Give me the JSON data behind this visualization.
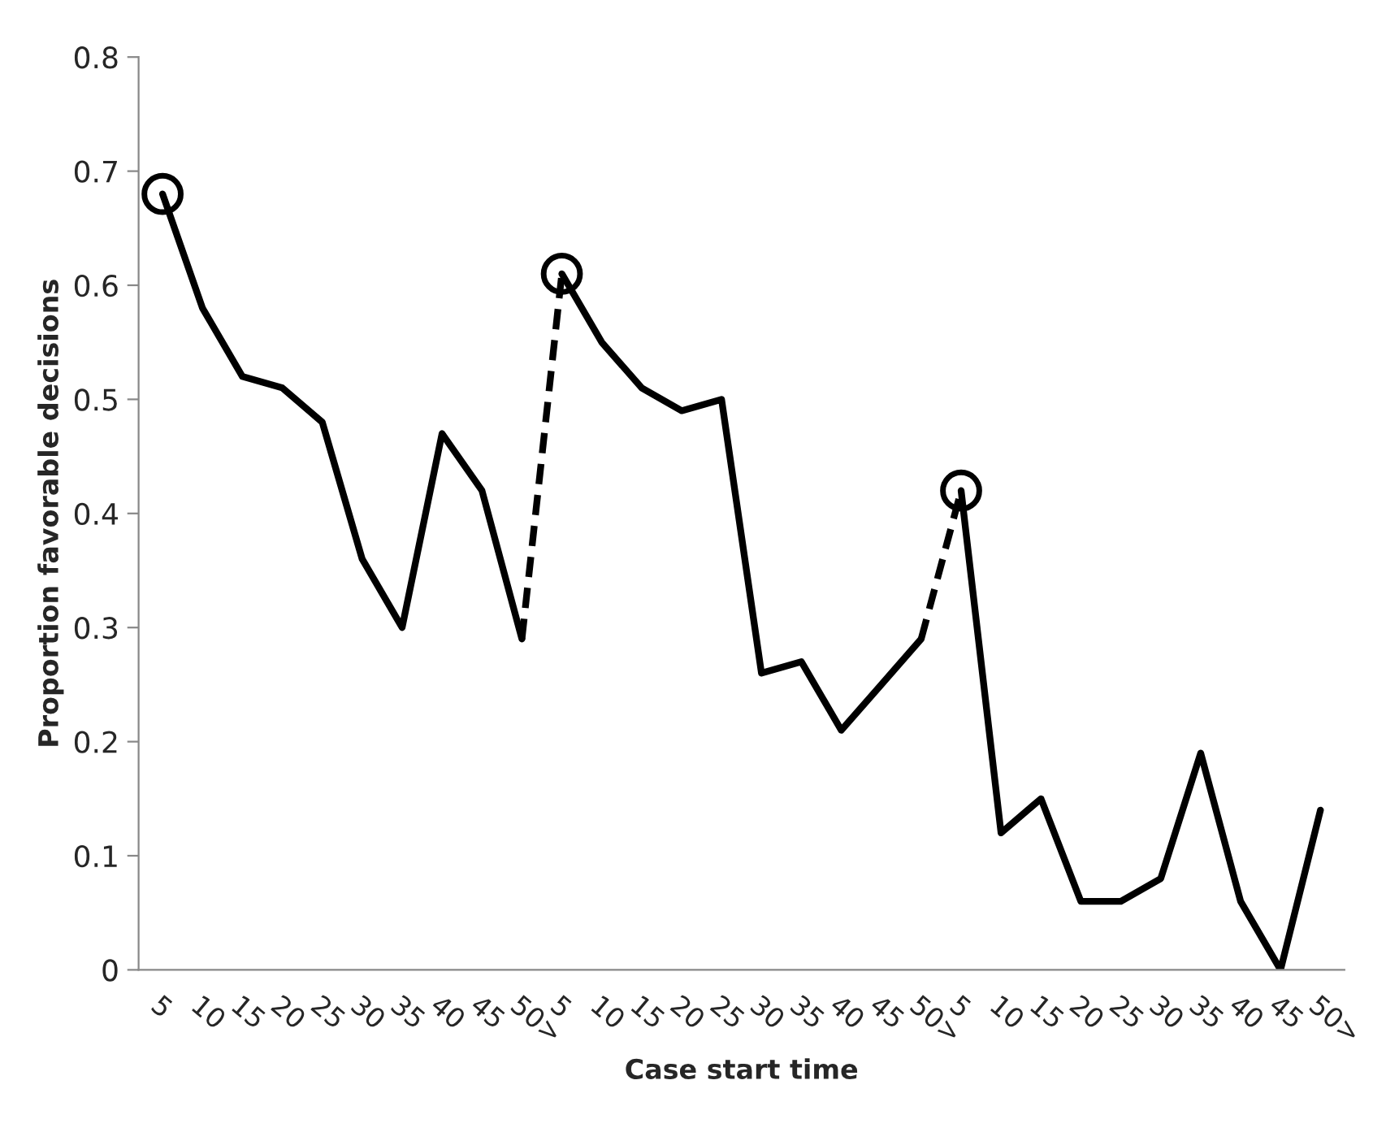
{
  "chart_data": {
    "type": "line",
    "xlabel": "Case start time",
    "ylabel": "Proportion favorable decisions",
    "categories": [
      "5",
      "10",
      "15",
      "20",
      "25",
      "30",
      "35",
      "40",
      "45",
      "50>",
      "5",
      "10",
      "15",
      "20",
      "25",
      "30",
      "35",
      "40",
      "45",
      "50>",
      "5",
      "10",
      "15",
      "20",
      "25",
      "30",
      "35",
      "40",
      "45",
      "50>"
    ],
    "ylim": [
      0,
      0.8
    ],
    "yticks": [
      0,
      0.1,
      0.2,
      0.3,
      0.4,
      0.5,
      0.6,
      0.7,
      0.8
    ],
    "grid": false,
    "legend": false,
    "series": [
      {
        "line_style": "solid",
        "color": "#000000",
        "values": [
          0.68,
          0.58,
          0.52,
          0.51,
          0.48,
          0.36,
          0.3,
          0.47,
          0.42,
          0.29,
          null,
          null,
          null,
          null,
          null,
          null,
          null,
          null,
          null,
          null,
          null,
          null,
          null,
          null,
          null,
          null,
          null,
          null,
          null,
          null
        ]
      },
      {
        "line_style": "solid",
        "color": "#000000",
        "values": [
          null,
          null,
          null,
          null,
          null,
          null,
          null,
          null,
          null,
          null,
          0.61,
          0.55,
          0.51,
          0.49,
          0.5,
          0.26,
          0.27,
          0.21,
          0.25,
          0.29,
          null,
          null,
          null,
          null,
          null,
          null,
          null,
          null,
          null,
          null
        ]
      },
      {
        "line_style": "solid",
        "color": "#000000",
        "values": [
          null,
          null,
          null,
          null,
          null,
          null,
          null,
          null,
          null,
          null,
          null,
          null,
          null,
          null,
          null,
          null,
          null,
          null,
          null,
          null,
          0.42,
          0.12,
          0.15,
          0.06,
          0.06,
          0.08,
          0.19,
          0.06,
          0.0,
          0.14
        ]
      },
      {
        "line_style": "dashed",
        "color": "#000000",
        "values": [
          null,
          null,
          null,
          null,
          null,
          null,
          null,
          null,
          null,
          0.29,
          0.61,
          null,
          null,
          null,
          null,
          null,
          null,
          null,
          null,
          null,
          null,
          null,
          null,
          null,
          null,
          null,
          null,
          null,
          null,
          null
        ]
      },
      {
        "line_style": "dashed",
        "color": "#000000",
        "values": [
          null,
          null,
          null,
          null,
          null,
          null,
          null,
          null,
          null,
          null,
          null,
          null,
          null,
          null,
          null,
          null,
          null,
          null,
          null,
          0.29,
          0.42,
          null,
          null,
          null,
          null,
          null,
          null,
          null,
          null,
          null
        ]
      },
      {
        "type": "scatter",
        "marker": "circle",
        "color": "#000000",
        "values": [
          0.68,
          null,
          null,
          null,
          null,
          null,
          null,
          null,
          null,
          null,
          0.61,
          null,
          null,
          null,
          null,
          null,
          null,
          null,
          null,
          null,
          0.42,
          null,
          null,
          null,
          null,
          null,
          null,
          null,
          null,
          null
        ]
      }
    ]
  }
}
